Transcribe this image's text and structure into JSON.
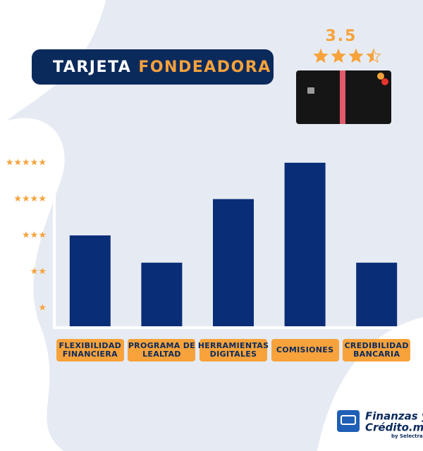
{
  "chart_data": {
    "type": "bar",
    "title": {
      "prefix": "TARJETA",
      "highlight": "FONDEADORA"
    },
    "rating": 3.5,
    "categories": [
      "FLEXIBILIDAD FINANCIERA",
      "PROGRAMA DE LEALTAD",
      "HERRAMIENTAS DIGITALES",
      "COMISIONES",
      "CREDIBILIDAD BANCARIA"
    ],
    "values": [
      3,
      2.25,
      4,
      5,
      2.25
    ],
    "color": "#0a2d78",
    "ylim": [
      0.5,
      5.6
    ],
    "yticks": [
      {
        "value": 1,
        "label": "★"
      },
      {
        "value": 2,
        "label": "★★"
      },
      {
        "value": 3,
        "label": "★★★"
      },
      {
        "value": 4,
        "label": "★★★★"
      },
      {
        "value": 5,
        "label": "★★★★★"
      }
    ]
  },
  "brand": {
    "line1": "Finanzas y",
    "line2": "Crédito.mx",
    "byline": "by Selectra"
  }
}
